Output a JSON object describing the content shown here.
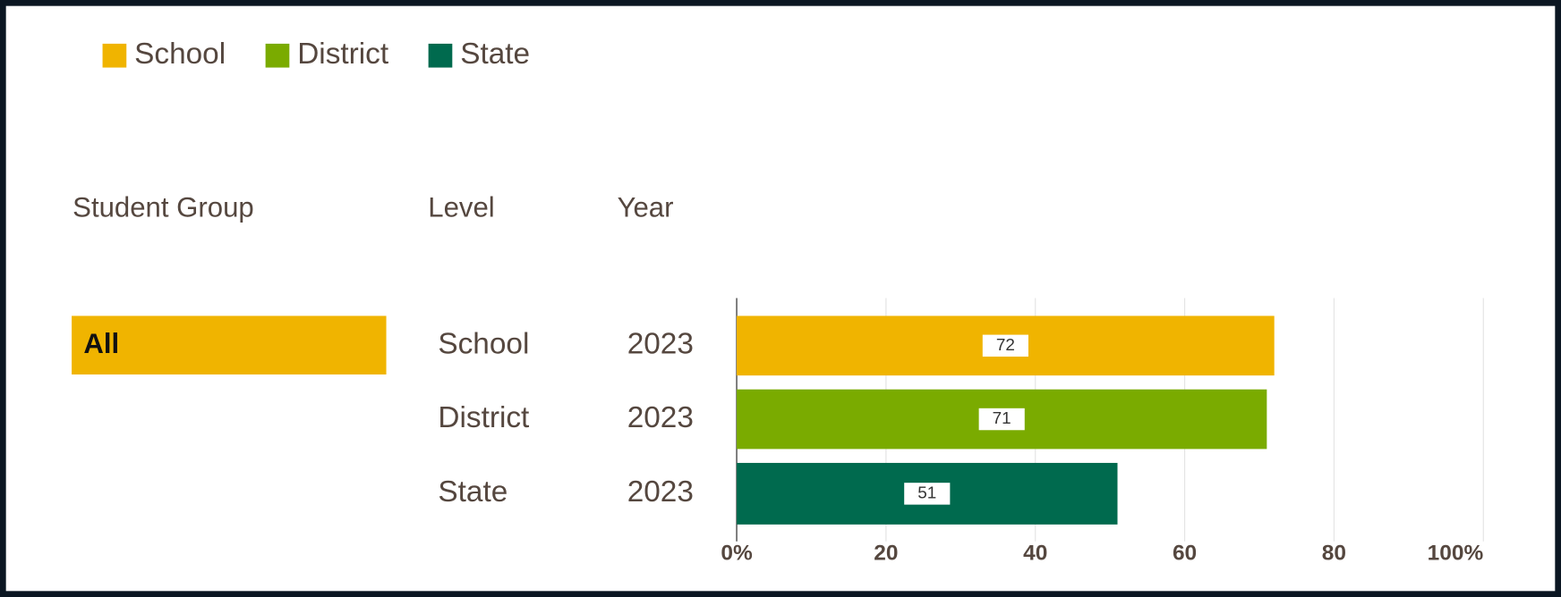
{
  "chart_data": {
    "type": "bar",
    "orientation": "horizontal",
    "legend": [
      {
        "name": "School",
        "color": "#f0b400"
      },
      {
        "name": "District",
        "color": "#7aab00"
      },
      {
        "name": "State",
        "color": "#006a4e"
      }
    ],
    "headers": [
      "Student Group",
      "Level",
      "Year"
    ],
    "group": {
      "label": "All",
      "color": "#f0b400"
    },
    "categories": [
      "School",
      "District",
      "State"
    ],
    "years": [
      "2023",
      "2023",
      "2023"
    ],
    "values": [
      72,
      71,
      51
    ],
    "colors": [
      "#f0b400",
      "#7aab00",
      "#006a4e"
    ],
    "xlim": [
      0,
      100
    ],
    "xticks": [
      {
        "value": 0,
        "label": "0%"
      },
      20,
      40,
      60,
      80,
      {
        "value": 100,
        "label": "100%"
      }
    ],
    "grid": true
  }
}
